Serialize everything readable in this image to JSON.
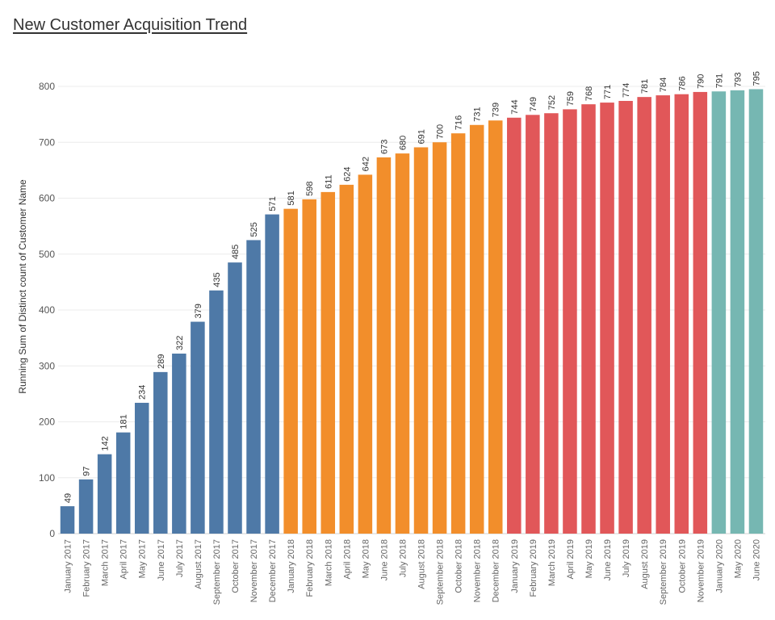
{
  "chart_data": {
    "type": "bar",
    "title": "New Customer Acquisition Trend",
    "xlabel": "",
    "ylabel": "Running Sum of Distinct count of Customer Name",
    "ylim": [
      0,
      800
    ],
    "yticks": [
      0,
      100,
      200,
      300,
      400,
      500,
      600,
      700,
      800
    ],
    "grid": true,
    "legend": "none",
    "categories": [
      "January 2017",
      "February 2017",
      "March 2017",
      "April 2017",
      "May 2017",
      "June 2017",
      "July 2017",
      "August 2017",
      "September 2017",
      "October 2017",
      "November 2017",
      "December 2017",
      "January 2018",
      "February 2018",
      "March 2018",
      "April 2018",
      "May 2018",
      "June 2018",
      "July 2018",
      "August 2018",
      "September 2018",
      "October 2018",
      "November 2018",
      "December 2018",
      "January 2019",
      "February 2019",
      "March 2019",
      "April 2019",
      "May 2019",
      "June 2019",
      "July 2019",
      "August 2019",
      "September 2019",
      "October 2019",
      "November 2019",
      "January 2020",
      "May 2020",
      "June 2020"
    ],
    "values": [
      49,
      97,
      142,
      181,
      234,
      289,
      322,
      379,
      435,
      485,
      525,
      571,
      581,
      598,
      611,
      624,
      642,
      673,
      680,
      691,
      700,
      716,
      731,
      739,
      744,
      749,
      752,
      759,
      768,
      771,
      774,
      781,
      784,
      786,
      790,
      791,
      793,
      795
    ],
    "year_groups": [
      {
        "year": "2017",
        "color": "#4e79a7",
        "count": 12
      },
      {
        "year": "2018",
        "color": "#f28e2b",
        "count": 12
      },
      {
        "year": "2019",
        "color": "#e15759",
        "count": 11
      },
      {
        "year": "2020",
        "color": "#76b7b2",
        "count": 3
      }
    ]
  }
}
